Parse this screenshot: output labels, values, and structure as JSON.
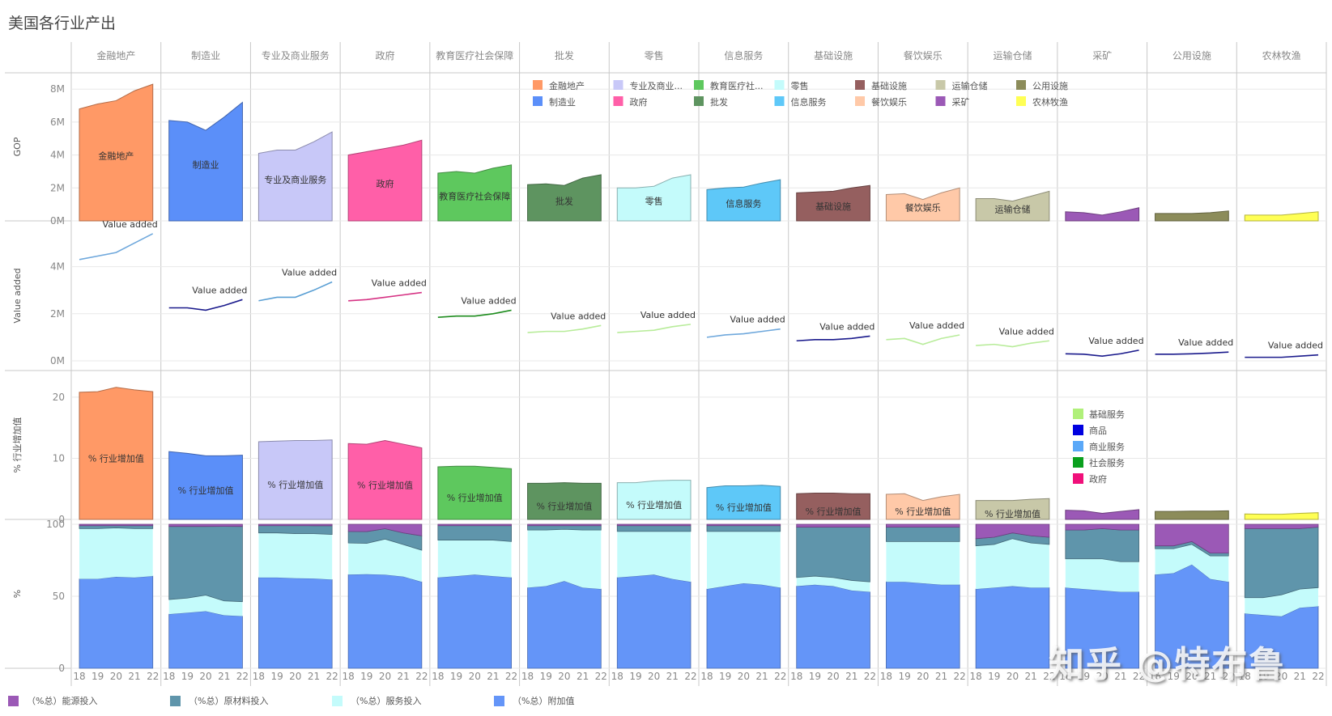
{
  "title": "美国各行业产出",
  "watermark": "知乎 @特布鲁",
  "chart_data": {
    "type": "area",
    "title": "美国各行业产出",
    "x": [
      "18",
      "19",
      "20",
      "21",
      "22"
    ],
    "industries": [
      {
        "name": "金融地产",
        "short": "金融地产",
        "color": "#ff9966",
        "gop": [
          6.8,
          7.1,
          7.3,
          7.9,
          8.3
        ],
        "va_color": "#6fa8dc",
        "va": [
          4.3,
          4.45,
          4.6,
          5.0,
          5.4
        ],
        "pct": [
          20.8,
          20.9,
          21.6,
          21.2,
          20.9
        ],
        "energy": [
          1,
          1,
          1,
          1,
          1
        ],
        "material": [
          2,
          2,
          1.5,
          2,
          2
        ],
        "service": [
          35,
          35,
          34,
          34,
          33
        ],
        "value_add": [
          62,
          62,
          63.5,
          63,
          64
        ]
      },
      {
        "name": "制造业",
        "short": "制造业",
        "color": "#5b8ff9",
        "gop": [
          6.1,
          6.0,
          5.5,
          6.3,
          7.2
        ],
        "va_color": "#1a1a8c",
        "va": [
          2.25,
          2.25,
          2.15,
          2.35,
          2.6
        ],
        "pct": [
          11.1,
          10.8,
          10.4,
          10.4,
          10.5
        ],
        "energy": [
          1.5,
          1.5,
          1.5,
          1.5,
          1.5
        ],
        "material": [
          50,
          49,
          47,
          52,
          52
        ],
        "service": [
          10,
          10,
          11,
          10,
          10
        ],
        "value_add": [
          37,
          38,
          39,
          37,
          36
        ]
      },
      {
        "name": "专业及商业服务",
        "short": "专业及商业...",
        "color": "#c8c8f8",
        "gop": [
          4.1,
          4.3,
          4.3,
          4.8,
          5.4
        ],
        "va_color": "#5a9fd4",
        "va": [
          2.55,
          2.7,
          2.7,
          3.0,
          3.35
        ],
        "pct": [
          12.7,
          12.8,
          12.9,
          12.9,
          13.0
        ],
        "energy": [
          1,
          1,
          1,
          1,
          1
        ],
        "material": [
          5,
          5,
          5.5,
          5.5,
          6
        ],
        "service": [
          31,
          31,
          31,
          31,
          31
        ],
        "value_add": [
          63,
          63,
          62.5,
          62,
          61
        ]
      },
      {
        "name": "政府",
        "short": "政府",
        "color": "#ff5fa8",
        "gop": [
          4.0,
          4.2,
          4.4,
          4.6,
          4.9
        ],
        "va_color": "#d63384",
        "va": [
          2.55,
          2.6,
          2.7,
          2.8,
          2.9
        ],
        "pct": [
          12.4,
          12.3,
          12.9,
          12.3,
          11.7
        ],
        "energy": [
          5,
          5,
          3,
          6,
          8
        ],
        "material": [
          8,
          8,
          7,
          8,
          10
        ],
        "service": [
          22,
          21,
          24,
          22,
          22
        ],
        "value_add": [
          65,
          64,
          63,
          63,
          60
        ]
      },
      {
        "name": "教育医疗社会保障",
        "short": "教育医疗社...",
        "color": "#5ec85e",
        "gop": [
          2.9,
          3.0,
          2.9,
          3.2,
          3.4
        ],
        "va_color": "#1e8c1e",
        "va": [
          1.85,
          1.9,
          1.9,
          2.0,
          2.15
        ],
        "pct": [
          8.6,
          8.7,
          8.7,
          8.5,
          8.3
        ],
        "energy": [
          1,
          1,
          1,
          1,
          1
        ],
        "material": [
          10,
          10,
          10,
          10,
          11
        ],
        "service": [
          26,
          25,
          24,
          25,
          25
        ],
        "value_add": [
          63,
          64,
          65,
          64,
          63
        ]
      },
      {
        "name": "批发",
        "short": "批发",
        "color": "#5e9460",
        "gop": [
          2.2,
          2.25,
          2.15,
          2.6,
          2.8
        ],
        "va_color": "#b8ec9a",
        "va": [
          1.2,
          1.25,
          1.25,
          1.35,
          1.5
        ],
        "pct": [
          5.9,
          5.9,
          6.0,
          5.9,
          5.9
        ],
        "energy": [
          1,
          1,
          1,
          1,
          1
        ],
        "material": [
          3,
          3,
          2.5,
          3,
          3
        ],
        "service": [
          40,
          39,
          36,
          40,
          41
        ],
        "value_add": [
          56,
          57,
          60.5,
          56,
          55
        ]
      },
      {
        "name": "零售",
        "short": "零售",
        "color": "#c4fbfb",
        "gop": [
          2.0,
          2.0,
          2.1,
          2.6,
          2.8
        ],
        "va_color": "#b8ec9a",
        "va": [
          1.2,
          1.25,
          1.3,
          1.45,
          1.55
        ],
        "pct": [
          6.0,
          6.0,
          6.3,
          6.4,
          6.4
        ],
        "energy": [
          1,
          1,
          1,
          1,
          1
        ],
        "material": [
          4,
          4,
          4,
          4,
          4
        ],
        "service": [
          32,
          31,
          30,
          33,
          35
        ],
        "value_add": [
          63,
          64,
          65,
          62,
          60
        ]
      },
      {
        "name": "信息服务",
        "short": "信息服务",
        "color": "#5ec8f8",
        "gop": [
          1.9,
          2.0,
          2.05,
          2.3,
          2.5
        ],
        "va_color": "#6fa8dc",
        "va": [
          1.0,
          1.1,
          1.15,
          1.25,
          1.35
        ],
        "pct": [
          5.2,
          5.5,
          5.5,
          5.6,
          5.4
        ],
        "energy": [
          1,
          1,
          1,
          1,
          1
        ],
        "material": [
          4,
          4,
          4,
          4,
          4
        ],
        "service": [
          40,
          38,
          36,
          37,
          39
        ],
        "value_add": [
          55,
          57,
          59,
          58,
          56
        ]
      },
      {
        "name": "基础设施",
        "short": "基础设施",
        "color": "#955f5f",
        "gop": [
          1.7,
          1.75,
          1.8,
          2.0,
          2.15
        ],
        "va_color": "#1a1a8c",
        "va": [
          0.85,
          0.9,
          0.9,
          0.95,
          1.05
        ],
        "pct": [
          4.2,
          4.3,
          4.3,
          4.2,
          4.2
        ],
        "energy": [
          2,
          2,
          2,
          2,
          2
        ],
        "material": [
          35,
          34,
          35,
          37,
          38
        ],
        "service": [
          6,
          6,
          6,
          7,
          7
        ],
        "value_add": [
          57,
          58,
          57,
          54,
          53
        ]
      },
      {
        "name": "餐饮娱乐",
        "short": "餐饮娱乐",
        "color": "#ffc9a8",
        "gop": [
          1.6,
          1.65,
          1.3,
          1.7,
          2.0
        ],
        "va_color": "#b8ec9a",
        "va": [
          0.9,
          0.95,
          0.7,
          0.95,
          1.1
        ],
        "pct": [
          4.1,
          4.2,
          3.1,
          3.7,
          4.1
        ],
        "energy": [
          2,
          2,
          2,
          2,
          2
        ],
        "material": [
          10,
          10,
          10,
          10,
          10
        ],
        "service": [
          28,
          28,
          29,
          30,
          30
        ],
        "value_add": [
          60,
          60,
          59,
          58,
          58
        ]
      },
      {
        "name": "运输仓储",
        "short": "运输仓储",
        "color": "#c8c8a8",
        "gop": [
          1.35,
          1.35,
          1.2,
          1.5,
          1.8
        ],
        "va_color": "#b8ec9a",
        "va": [
          0.65,
          0.7,
          0.6,
          0.75,
          0.85
        ],
        "pct": [
          3.1,
          3.1,
          3.1,
          3.3,
          3.4
        ],
        "energy": [
          10,
          9,
          6,
          8,
          9
        ],
        "material": [
          5,
          5,
          4,
          5,
          5
        ],
        "service": [
          30,
          30,
          33,
          31,
          30
        ],
        "value_add": [
          55,
          56,
          57,
          56,
          56
        ]
      },
      {
        "name": "采矿",
        "short": "采矿",
        "color": "#9b59b6",
        "gop": [
          0.55,
          0.5,
          0.35,
          0.55,
          0.8
        ],
        "va_color": "#1a1a8c",
        "va": [
          0.3,
          0.28,
          0.2,
          0.3,
          0.45
        ],
        "pct": [
          1.5,
          1.4,
          1.0,
          1.3,
          1.6
        ],
        "energy": [
          4,
          4,
          3,
          4,
          4
        ],
        "material": [
          20,
          20,
          21,
          22,
          22
        ],
        "service": [
          20,
          21,
          22,
          21,
          21
        ],
        "value_add": [
          56,
          55,
          54,
          53,
          53
        ]
      },
      {
        "name": "公用设施",
        "short": "公用设施",
        "color": "#8c8c5a",
        "gop": [
          0.45,
          0.45,
          0.45,
          0.5,
          0.6
        ],
        "va_color": "#1a1a8c",
        "va": [
          0.28,
          0.28,
          0.3,
          0.33,
          0.37
        ],
        "pct": [
          1.3,
          1.3,
          1.35,
          1.35,
          1.4
        ],
        "energy": [
          15,
          15,
          12,
          20,
          20
        ],
        "material": [
          2,
          2,
          2,
          2,
          2
        ],
        "service": [
          18,
          17,
          14,
          16,
          18
        ],
        "value_add": [
          65,
          66,
          72,
          62,
          60
        ]
      },
      {
        "name": "农林牧渔",
        "short": "农林牧渔",
        "color": "#ffff55",
        "gop": [
          0.35,
          0.35,
          0.35,
          0.45,
          0.55
        ],
        "va_color": "#1a1a8c",
        "va": [
          0.15,
          0.15,
          0.15,
          0.2,
          0.25
        ],
        "pct": [
          0.9,
          0.85,
          0.85,
          1.0,
          1.1
        ],
        "energy": [
          3,
          3,
          3,
          3,
          2
        ],
        "material": [
          48,
          48,
          46,
          42,
          42
        ],
        "service": [
          11,
          12,
          15,
          13,
          13
        ],
        "value_add": [
          38,
          37,
          36,
          42,
          43
        ]
      }
    ],
    "rows": [
      {
        "key": "gop",
        "ylabel": "GOP",
        "ticks": [
          "0M",
          "2M",
          "4M",
          "6M",
          "8M"
        ],
        "tickvals": [
          0,
          2,
          4,
          6,
          8
        ],
        "ylim": [
          0,
          8.6
        ],
        "label_mode": "name"
      },
      {
        "key": "va",
        "ylabel": "Value added",
        "ticks": [
          "0M",
          "2M",
          "4M"
        ],
        "tickvals": [
          0,
          2,
          4
        ],
        "ylim": [
          0,
          5.6
        ],
        "label_text": "Value added"
      },
      {
        "key": "pct",
        "ylabel": "% 行业增加值",
        "ticks": [
          "0",
          "10",
          "20"
        ],
        "tickvals": [
          0,
          10,
          20
        ],
        "ylim": [
          0,
          22.5
        ],
        "label_text": "% 行业增加值"
      },
      {
        "key": "stack",
        "ylabel": "%",
        "ticks": [
          "0",
          "50",
          "100"
        ],
        "tickvals": [
          0,
          50,
          100
        ],
        "ylim": [
          0,
          100
        ]
      }
    ],
    "gop_legend": [
      {
        "label": "金融地产",
        "color": "#ff9966"
      },
      {
        "label": "制造业",
        "color": "#5b8ff9"
      },
      {
        "label": "专业及商业...",
        "color": "#c8c8f8"
      },
      {
        "label": "政府",
        "color": "#ff5fa8"
      },
      {
        "label": "教育医疗社...",
        "color": "#5ec85e"
      },
      {
        "label": "批发",
        "color": "#5e9460"
      },
      {
        "label": "零售",
        "color": "#c4fbfb"
      },
      {
        "label": "信息服务",
        "color": "#5ec8f8"
      },
      {
        "label": "基础设施",
        "color": "#955f5f"
      },
      {
        "label": "餐饮娱乐",
        "color": "#ffc9a8"
      },
      {
        "label": "运输仓储",
        "color": "#c8c8a8"
      },
      {
        "label": "采矿",
        "color": "#9b59b6"
      },
      {
        "label": "公用设施",
        "color": "#8c8c5a"
      },
      {
        "label": "农林牧渔",
        "color": "#ffff55"
      }
    ],
    "va_legend": [
      {
        "label": "基础服务",
        "color": "#b0f07a"
      },
      {
        "label": "商品",
        "color": "#0000e0"
      },
      {
        "label": "商业服务",
        "color": "#5aa8f8"
      },
      {
        "label": "社会服务",
        "color": "#0aa01e"
      },
      {
        "label": "政府",
        "color": "#f0107a"
      }
    ],
    "stack_legend": [
      {
        "label": "（%总）能源投入",
        "color": "#9b59b6"
      },
      {
        "label": "（%总）原材料投入",
        "color": "#5f95ab"
      },
      {
        "label": "（%总）服务投入",
        "color": "#c4fbfb"
      },
      {
        "label": "（%总）附加值",
        "color": "#6495f8"
      }
    ]
  }
}
